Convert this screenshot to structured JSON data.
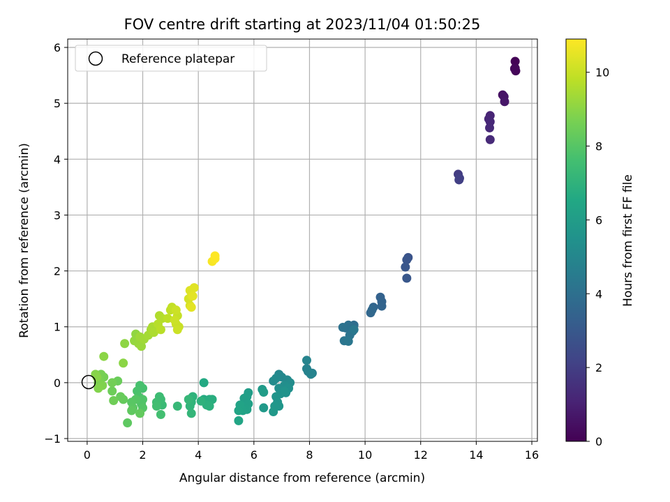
{
  "chart_data": {
    "type": "scatter",
    "title": "FOV centre drift starting at 2023/11/04 01:50:25",
    "xlabel": "Angular distance from reference (arcmin)",
    "ylabel": "Rotation from reference (arcmin)",
    "xlim": [
      -0.7,
      16.2
    ],
    "ylim": [
      -1.05,
      6.15
    ],
    "xticks": [
      "0",
      "2",
      "4",
      "6",
      "8",
      "10",
      "12",
      "14",
      "16"
    ],
    "yticks": [
      "−1",
      "0",
      "1",
      "2",
      "3",
      "4",
      "5",
      "6"
    ],
    "grid": true,
    "legend": {
      "placement": "top-left",
      "entries": [
        "Reference platepar"
      ]
    },
    "reference_point": {
      "x": 0,
      "y": 0
    },
    "colorbar": {
      "label": "Hours from first FF file",
      "range": [
        0,
        10.9
      ],
      "ticks": [
        "0",
        "2",
        "4",
        "6",
        "8",
        "10"
      ],
      "colormap": "viridis"
    },
    "points": [
      [
        15.4,
        5.75,
        0.05
      ],
      [
        15.4,
        5.63,
        0.1
      ],
      [
        15.42,
        5.58,
        0.15
      ],
      [
        15.38,
        5.62,
        0.2
      ],
      [
        14.95,
        5.15,
        0.5
      ],
      [
        15.0,
        5.12,
        0.6
      ],
      [
        15.02,
        5.03,
        0.7
      ],
      [
        14.5,
        4.78,
        1.1
      ],
      [
        14.45,
        4.72,
        1.15
      ],
      [
        14.5,
        4.67,
        1.2
      ],
      [
        14.48,
        4.56,
        1.25
      ],
      [
        14.5,
        4.35,
        1.3
      ],
      [
        13.35,
        3.73,
        1.9
      ],
      [
        13.38,
        3.63,
        2.0
      ],
      [
        13.4,
        3.66,
        2.05
      ],
      [
        11.55,
        2.24,
        2.8
      ],
      [
        11.5,
        2.2,
        2.85
      ],
      [
        11.45,
        2.07,
        2.9
      ],
      [
        11.5,
        1.87,
        2.95
      ],
      [
        10.55,
        1.53,
        3.4
      ],
      [
        10.6,
        1.45,
        3.45
      ],
      [
        10.6,
        1.37,
        3.5
      ],
      [
        10.3,
        1.35,
        3.55
      ],
      [
        10.2,
        1.25,
        3.6
      ],
      [
        10.25,
        1.3,
        3.65
      ],
      [
        9.6,
        1.03,
        3.9
      ],
      [
        9.5,
        1.0,
        3.95
      ],
      [
        9.4,
        1.03,
        4.0
      ],
      [
        9.3,
        0.98,
        4.05
      ],
      [
        9.2,
        0.99,
        4.1
      ],
      [
        9.55,
        0.92,
        4.15
      ],
      [
        9.45,
        0.85,
        4.2
      ],
      [
        9.25,
        0.75,
        4.25
      ],
      [
        9.4,
        0.74,
        4.3
      ],
      [
        9.6,
        0.95,
        4.35
      ],
      [
        8.1,
        0.17,
        4.7
      ],
      [
        7.95,
        0.2,
        4.75
      ],
      [
        7.9,
        0.25,
        4.8
      ],
      [
        8.05,
        0.15,
        4.85
      ],
      [
        7.9,
        0.4,
        4.9
      ],
      [
        6.9,
        0.15,
        5.0
      ],
      [
        7.0,
        0.1,
        5.05
      ],
      [
        7.2,
        0.05,
        5.1
      ],
      [
        6.8,
        0.08,
        5.15
      ],
      [
        6.7,
        0.03,
        5.2
      ],
      [
        7.3,
        0.0,
        5.25
      ],
      [
        7.1,
        -0.05,
        5.3
      ],
      [
        6.9,
        -0.1,
        5.35
      ],
      [
        7.25,
        -0.1,
        5.4
      ],
      [
        7.15,
        -0.18,
        5.45
      ],
      [
        6.95,
        -0.2,
        5.5
      ],
      [
        7.1,
        -0.15,
        5.55
      ],
      [
        6.8,
        -0.25,
        5.6
      ],
      [
        6.85,
        -0.35,
        5.65
      ],
      [
        6.9,
        -0.42,
        5.7
      ],
      [
        6.75,
        -0.42,
        5.75
      ],
      [
        6.7,
        -0.52,
        5.8
      ],
      [
        6.35,
        -0.45,
        5.85
      ],
      [
        6.3,
        -0.12,
        5.9
      ],
      [
        6.35,
        -0.17,
        5.95
      ],
      [
        5.8,
        -0.18,
        6.0
      ],
      [
        5.75,
        -0.25,
        6.05
      ],
      [
        5.65,
        -0.28,
        6.1
      ],
      [
        5.8,
        -0.38,
        6.15
      ],
      [
        5.75,
        -0.48,
        6.2
      ],
      [
        5.6,
        -0.5,
        6.25
      ],
      [
        5.5,
        -0.4,
        6.3
      ],
      [
        5.45,
        -0.5,
        6.35
      ],
      [
        5.45,
        -0.68,
        6.4
      ],
      [
        4.2,
        0.0,
        6.6
      ],
      [
        4.2,
        -0.3,
        6.65
      ],
      [
        4.3,
        -0.35,
        6.7
      ],
      [
        4.4,
        -0.3,
        6.75
      ],
      [
        4.5,
        -0.3,
        6.8
      ],
      [
        4.3,
        -0.4,
        6.85
      ],
      [
        4.4,
        -0.42,
        6.9
      ],
      [
        4.1,
        -0.33,
        6.95
      ],
      [
        3.8,
        -0.25,
        7.0
      ],
      [
        3.75,
        -0.35,
        7.05
      ],
      [
        3.7,
        -0.42,
        7.1
      ],
      [
        3.75,
        -0.55,
        7.15
      ],
      [
        3.65,
        -0.3,
        7.2
      ],
      [
        3.25,
        -0.42,
        7.25
      ],
      [
        2.7,
        -0.4,
        7.35
      ],
      [
        2.65,
        -0.3,
        7.4
      ],
      [
        2.6,
        -0.25,
        7.45
      ],
      [
        2.5,
        -0.35,
        7.5
      ],
      [
        2.5,
        -0.42,
        7.55
      ],
      [
        2.65,
        -0.57,
        7.6
      ],
      [
        2.0,
        -0.1,
        7.65
      ],
      [
        1.9,
        -0.05,
        7.7
      ],
      [
        1.8,
        -0.15,
        7.75
      ],
      [
        1.85,
        -0.25,
        7.8
      ],
      [
        2.0,
        -0.3,
        7.85
      ],
      [
        1.95,
        -0.38,
        7.9
      ],
      [
        2.0,
        -0.45,
        7.95
      ],
      [
        1.75,
        -0.3,
        8.0
      ],
      [
        1.6,
        -0.35,
        8.05
      ],
      [
        1.65,
        -0.45,
        8.1
      ],
      [
        1.45,
        -0.72,
        8.15
      ],
      [
        1.6,
        -0.5,
        8.2
      ],
      [
        1.9,
        -0.55,
        8.25
      ],
      [
        1.3,
        -0.3,
        8.3
      ],
      [
        1.2,
        -0.25,
        8.35
      ],
      [
        1.1,
        0.03,
        8.4
      ],
      [
        0.9,
        -0.15,
        8.45
      ],
      [
        0.95,
        -0.32,
        8.5
      ],
      [
        0.9,
        0.0,
        8.55
      ],
      [
        0.6,
        0.1,
        8.6
      ],
      [
        0.5,
        0.15,
        8.65
      ],
      [
        0.45,
        0.05,
        8.7
      ],
      [
        0.4,
        0.0,
        8.75
      ],
      [
        0.55,
        -0.05,
        8.8
      ],
      [
        0.4,
        -0.1,
        8.85
      ],
      [
        0.3,
        0.15,
        8.9
      ],
      [
        0.35,
        0.1,
        8.95
      ],
      [
        0.6,
        0.47,
        9.0
      ],
      [
        1.3,
        0.35,
        9.0
      ],
      [
        1.35,
        0.7,
        9.05
      ],
      [
        1.75,
        0.87,
        9.1
      ],
      [
        1.7,
        0.75,
        9.15
      ],
      [
        1.85,
        0.7,
        9.2
      ],
      [
        1.95,
        0.65,
        9.25
      ],
      [
        1.9,
        0.82,
        9.3
      ],
      [
        2.05,
        0.78,
        9.35
      ],
      [
        2.2,
        0.85,
        9.4
      ],
      [
        2.3,
        0.95,
        9.45
      ],
      [
        2.35,
        1.0,
        9.5
      ],
      [
        2.4,
        0.9,
        9.55
      ],
      [
        2.6,
        1.2,
        9.6
      ],
      [
        2.7,
        1.15,
        9.65
      ],
      [
        2.55,
        1.05,
        9.7
      ],
      [
        2.65,
        0.95,
        9.75
      ],
      [
        2.9,
        1.15,
        9.8
      ],
      [
        3.0,
        1.3,
        9.85
      ],
      [
        3.05,
        1.35,
        9.9
      ],
      [
        3.25,
        1.2,
        9.95
      ],
      [
        3.2,
        1.05,
        10.0
      ],
      [
        3.3,
        1.0,
        10.0
      ],
      [
        3.25,
        0.95,
        10.05
      ],
      [
        3.15,
        1.12,
        10.05
      ],
      [
        3.2,
        1.3,
        10.05
      ],
      [
        3.65,
        1.5,
        10.2
      ],
      [
        3.7,
        1.38,
        10.25
      ],
      [
        3.75,
        1.55,
        10.3
      ],
      [
        3.7,
        1.65,
        10.35
      ],
      [
        3.85,
        1.7,
        10.4
      ],
      [
        3.8,
        1.55,
        10.45
      ],
      [
        3.75,
        1.35,
        10.45
      ],
      [
        4.5,
        2.17,
        10.8
      ],
      [
        4.6,
        2.22,
        10.85
      ],
      [
        4.6,
        2.27,
        10.9
      ]
    ]
  }
}
